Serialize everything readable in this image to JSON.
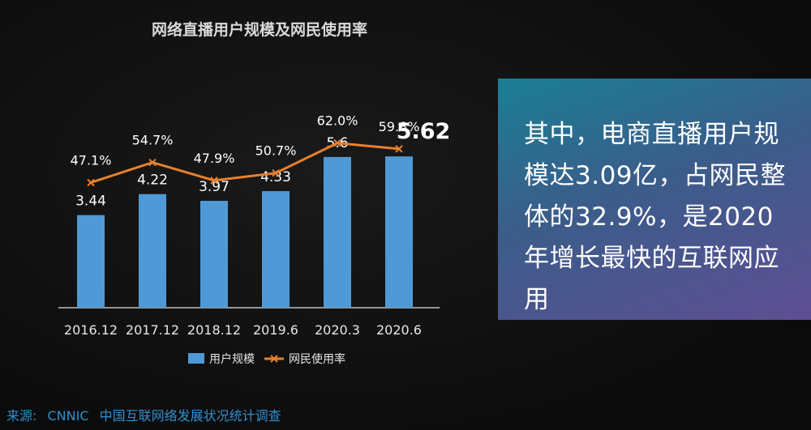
{
  "chart_data": {
    "type": "bar+line",
    "title": "网络直播用户规模及网民使用率",
    "categories": [
      "2016.12",
      "2017.12",
      "2018.12",
      "2019.6",
      "2020.3",
      "2020.6"
    ],
    "series": [
      {
        "name": "用户规模",
        "type": "bar",
        "values": [
          3.44,
          4.22,
          3.97,
          4.33,
          5.6,
          5.62
        ],
        "labels": [
          "3.44",
          "4.22",
          "3.97",
          "4.33",
          "5.6",
          "5.62"
        ],
        "color": "#4f9ad6"
      },
      {
        "name": "网民使用率",
        "type": "line",
        "values": [
          47.1,
          54.7,
          47.9,
          50.7,
          62.0,
          59.8
        ],
        "labels": [
          "47.1%",
          "54.7%",
          "47.9%",
          "50.7%",
          "62.0%",
          "59.8%"
        ],
        "color": "#e8812c"
      }
    ],
    "bar_ylim": [
      0,
      7.4
    ],
    "line_ylim": [
      0,
      75
    ],
    "grid": false,
    "legend": "bottom"
  },
  "panel": {
    "text": "其中，电商直播用户规模达3.09亿，占网民整体的32.9%，是2020年增长最快的互联网应用"
  },
  "footer": {
    "source_label": "来源:",
    "source_org": "CNNIC",
    "source_name": "中国互联网络发展状况统计调查"
  }
}
